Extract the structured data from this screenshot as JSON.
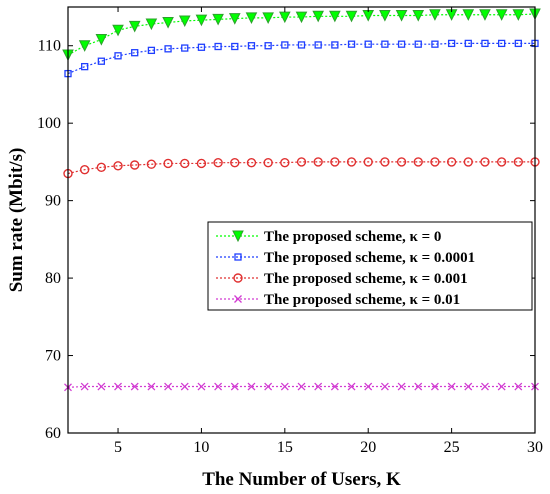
{
  "chart_data": {
    "type": "line",
    "title": "",
    "xlabel": "The Number of Users, K",
    "ylabel": "Sum rate (Mbit/s)",
    "xlim": [
      2,
      30
    ],
    "ylim": [
      60,
      115
    ],
    "xticks": [
      5,
      10,
      15,
      20,
      25,
      30
    ],
    "yticks": [
      60,
      70,
      80,
      90,
      100,
      110
    ],
    "grid": false,
    "legend_position": "center-right",
    "x": [
      2,
      3,
      4,
      5,
      6,
      7,
      8,
      9,
      10,
      11,
      12,
      13,
      14,
      15,
      16,
      17,
      18,
      19,
      20,
      21,
      22,
      23,
      24,
      25,
      26,
      27,
      28,
      29,
      30
    ],
    "series": [
      {
        "name": "The proposed scheme, κ = 0",
        "color": "#00ff00",
        "edge_color": "#2ca02c",
        "marker": "triangle-down",
        "values": [
          108.8,
          110.0,
          110.8,
          112.0,
          112.5,
          112.8,
          113.0,
          113.2,
          113.3,
          113.4,
          113.5,
          113.6,
          113.6,
          113.7,
          113.7,
          113.8,
          113.8,
          113.8,
          113.9,
          113.9,
          113.9,
          113.9,
          114.0,
          114.0,
          114.0,
          114.0,
          114.0,
          114.0,
          114.1
        ]
      },
      {
        "name": "The proposed scheme, κ = 0.0001",
        "color": "#1f3fff",
        "edge_color": "#0000cc",
        "marker": "square",
        "values": [
          106.4,
          107.3,
          108.0,
          108.7,
          109.1,
          109.4,
          109.6,
          109.7,
          109.8,
          109.9,
          109.9,
          110.0,
          110.0,
          110.1,
          110.1,
          110.1,
          110.1,
          110.2,
          110.2,
          110.2,
          110.2,
          110.2,
          110.2,
          110.3,
          110.3,
          110.3,
          110.3,
          110.3,
          110.3
        ]
      },
      {
        "name": "The proposed scheme, κ = 0.001",
        "color": "#e03030",
        "edge_color": "#cc0000",
        "marker": "circle",
        "values": [
          93.5,
          94.0,
          94.3,
          94.5,
          94.6,
          94.7,
          94.8,
          94.8,
          94.8,
          94.9,
          94.9,
          94.9,
          94.9,
          94.9,
          95.0,
          95.0,
          95.0,
          95.0,
          95.0,
          95.0,
          95.0,
          95.0,
          95.0,
          95.0,
          95.0,
          95.0,
          95.0,
          95.0,
          95.0
        ]
      },
      {
        "name": "The proposed scheme, κ = 0.01",
        "color": "#d23cd2",
        "edge_color": "#c000c0",
        "marker": "x",
        "values": [
          65.9,
          66.0,
          66.0,
          66.0,
          66.0,
          66.0,
          66.0,
          66.0,
          66.0,
          66.0,
          66.0,
          66.0,
          66.0,
          66.0,
          66.0,
          66.0,
          66.0,
          66.0,
          66.0,
          66.0,
          66.0,
          66.0,
          66.0,
          66.0,
          66.0,
          66.0,
          66.0,
          66.0,
          66.0
        ]
      }
    ]
  }
}
